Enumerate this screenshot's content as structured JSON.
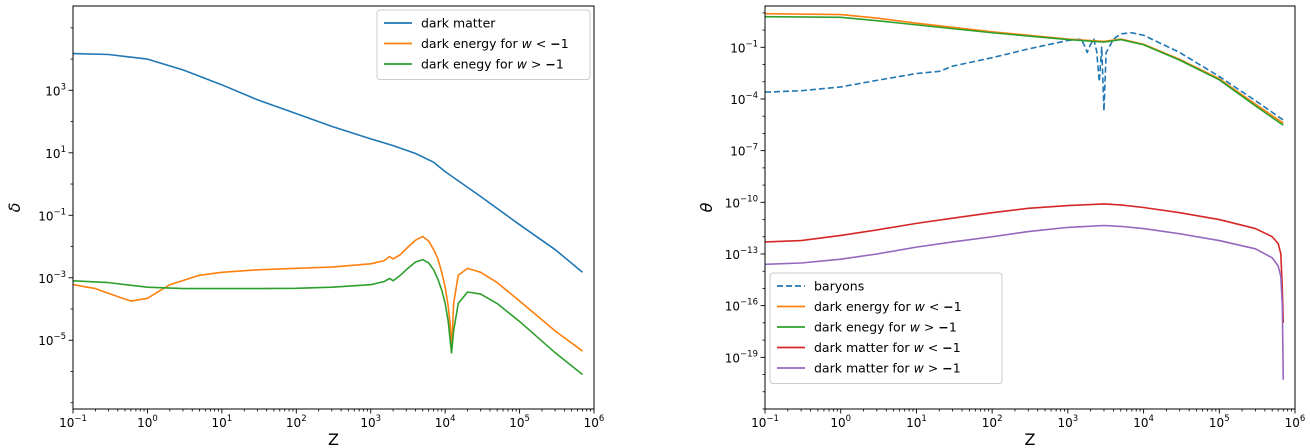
{
  "chart_data": [
    {
      "type": "line",
      "xlabel": "Z",
      "ylabel": "δ",
      "xscale": "log",
      "yscale": "log",
      "xlim": [
        0.1,
        1000000
      ],
      "ylim": [
        6.3e-08,
        500000
      ],
      "xticks": [
        {
          "v": 0.1,
          "base": "10",
          "exp": "−1"
        },
        {
          "v": 1,
          "base": "10",
          "exp": "0"
        },
        {
          "v": 10,
          "base": "10",
          "exp": "1"
        },
        {
          "v": 100,
          "base": "10",
          "exp": "2"
        },
        {
          "v": 1000,
          "base": "10",
          "exp": "3"
        },
        {
          "v": 10000,
          "base": "10",
          "exp": "4"
        },
        {
          "v": 100000,
          "base": "10",
          "exp": "5"
        },
        {
          "v": 1000000,
          "base": "10",
          "exp": "6"
        }
      ],
      "yticks": [
        {
          "v": 1e-05,
          "base": "10",
          "exp": "−5"
        },
        {
          "v": 0.001,
          "base": "10",
          "exp": "−3"
        },
        {
          "v": 0.1,
          "base": "10",
          "exp": "−1"
        },
        {
          "v": 10,
          "base": "10",
          "exp": "1"
        },
        {
          "v": 1000,
          "base": "10",
          "exp": "3"
        }
      ],
      "grid": false,
      "legend_position": "upper right",
      "series": [
        {
          "name": "dark matter",
          "name_pre": "dark matter",
          "name_rel": "",
          "name_val": "",
          "color": "#1f77b4",
          "dash": "solid",
          "x": [
            0.1,
            0.3,
            1,
            3,
            10,
            30,
            100,
            300,
            1000,
            2000,
            4000,
            7000,
            10000,
            30000,
            100000,
            300000,
            700000
          ],
          "y": [
            15000,
            14000,
            10000,
            4500,
            1500,
            500,
            180,
            70,
            28,
            17,
            9.5,
            5,
            2.5,
            0.4,
            0.05,
            0.008,
            0.0015
          ]
        },
        {
          "name": "dark energy for w < −1",
          "name_pre": "dark energy for ",
          "name_rel": "<",
          "name_val": "1",
          "color": "#ff7f0e",
          "dash": "solid",
          "x": [
            0.1,
            0.2,
            0.4,
            0.6,
            1,
            2,
            5,
            10,
            30,
            100,
            300,
            1000,
            1500,
            1800,
            2000,
            2500,
            3000,
            4000,
            5000,
            6000,
            7000,
            8000,
            9000,
            10000,
            11000,
            11800,
            12200,
            13000,
            15000,
            20000,
            30000,
            50000,
            100000,
            300000,
            700000
          ],
          "y": [
            0.0006,
            0.00045,
            0.00025,
            0.00018,
            0.00022,
            0.0006,
            0.0012,
            0.0015,
            0.0018,
            0.002,
            0.0022,
            0.0028,
            0.0035,
            0.0048,
            0.004,
            0.0055,
            0.0085,
            0.016,
            0.021,
            0.015,
            0.008,
            0.004,
            0.0015,
            0.0005,
            0.00012,
            2.5e-05,
            4e-06,
            0.00015,
            0.0012,
            0.002,
            0.0015,
            0.0007,
            0.00018,
            2e-05,
            4.5e-06
          ]
        },
        {
          "name": "dark enegy for w > −1",
          "name_pre": "dark enegy for ",
          "name_rel": ">",
          "name_val": "1",
          "color": "#2ca02c",
          "dash": "solid",
          "x": [
            0.1,
            0.3,
            1,
            3,
            10,
            30,
            100,
            300,
            1000,
            1500,
            1800,
            2000,
            2500,
            3000,
            4000,
            5000,
            6000,
            7000,
            8000,
            9000,
            10000,
            11000,
            11800,
            12200,
            13000,
            15000,
            20000,
            30000,
            50000,
            100000,
            300000,
            700000
          ],
          "y": [
            0.0008,
            0.0007,
            0.0005,
            0.00045,
            0.00045,
            0.00045,
            0.00046,
            0.0005,
            0.0006,
            0.00075,
            0.00095,
            0.0008,
            0.0012,
            0.0018,
            0.0032,
            0.0038,
            0.003,
            0.0018,
            0.0009,
            0.0004,
            0.00015,
            4e-05,
            8e-06,
            4e-06,
            2e-05,
            0.00015,
            0.00035,
            0.0003,
            0.00015,
            4e-05,
            4e-06,
            8e-07
          ]
        }
      ]
    },
    {
      "type": "line",
      "xlabel": "Z",
      "ylabel": "θ",
      "xscale": "log",
      "yscale": "log",
      "xlim": [
        0.1,
        1000000
      ],
      "ylim": [
        1e-22,
        25
      ],
      "xticks": [
        {
          "v": 0.1,
          "base": "10",
          "exp": "−1"
        },
        {
          "v": 1,
          "base": "10",
          "exp": "0"
        },
        {
          "v": 10,
          "base": "10",
          "exp": "1"
        },
        {
          "v": 100,
          "base": "10",
          "exp": "2"
        },
        {
          "v": 1000,
          "base": "10",
          "exp": "3"
        },
        {
          "v": 10000,
          "base": "10",
          "exp": "4"
        },
        {
          "v": 100000,
          "base": "10",
          "exp": "5"
        },
        {
          "v": 1000000,
          "base": "10",
          "exp": "6"
        }
      ],
      "yticks": [
        {
          "v": 1e-19,
          "base": "10",
          "exp": "−19"
        },
        {
          "v": 1e-16,
          "base": "10",
          "exp": "−16"
        },
        {
          "v": 1e-13,
          "base": "10",
          "exp": "−13"
        },
        {
          "v": 1e-10,
          "base": "10",
          "exp": "−10"
        },
        {
          "v": 1e-07,
          "base": "10",
          "exp": "−7"
        },
        {
          "v": 0.0001,
          "base": "10",
          "exp": "−4"
        },
        {
          "v": 0.1,
          "base": "10",
          "exp": "−1"
        }
      ],
      "grid": false,
      "legend_position": "lower left",
      "series": [
        {
          "name": "baryons",
          "name_pre": "baryons",
          "name_rel": "",
          "name_val": "",
          "color": "#1f77b4",
          "dash": "dashed",
          "x": [
            0.1,
            0.3,
            1,
            3,
            10,
            20,
            30,
            100,
            300,
            1000,
            1500,
            1700,
            1800,
            2000,
            2200,
            2400,
            2600,
            2800,
            3000,
            3200,
            3500,
            4000,
            5000,
            7000,
            10000,
            30000,
            100000,
            300000,
            700000
          ],
          "y": [
            0.00025,
            0.0003,
            0.0005,
            0.0012,
            0.003,
            0.004,
            0.008,
            0.025,
            0.08,
            0.25,
            0.3,
            0.1,
            0.05,
            0.15,
            0.3,
            0.06,
            0.001,
            0.1,
            2e-05,
            0.05,
            0.1,
            0.3,
            0.6,
            0.7,
            0.5,
            0.05,
            0.002,
            8e-05,
            6e-06
          ]
        },
        {
          "name": "dark energy for w < −1",
          "name_pre": "dark energy for ",
          "name_rel": "<",
          "name_val": "1",
          "color": "#ff7f0e",
          "dash": "solid",
          "x": [
            0.1,
            1,
            3,
            10,
            100,
            1000,
            3000,
            5000,
            10000,
            30000,
            100000,
            300000,
            700000
          ],
          "y": [
            9,
            8,
            5,
            2.5,
            0.8,
            0.3,
            0.22,
            0.3,
            0.15,
            0.02,
            0.0015,
            5e-05,
            4e-06
          ]
        },
        {
          "name": "dark enegy for w > −1",
          "name_pre": "dark enegy for ",
          "name_rel": ">",
          "name_val": "1",
          "color": "#2ca02c",
          "dash": "solid",
          "x": [
            0.1,
            1,
            3,
            10,
            100,
            1000,
            3000,
            5000,
            10000,
            30000,
            100000,
            300000,
            700000
          ],
          "y": [
            6,
            5.5,
            3.5,
            2,
            0.7,
            0.28,
            0.2,
            0.28,
            0.14,
            0.018,
            0.0013,
            4e-05,
            3e-06
          ]
        },
        {
          "name": "dark matter for w < −1",
          "name_pre": "dark matter for ",
          "name_rel": "<",
          "name_val": "1",
          "color": "#d62728",
          "dash": "solid",
          "x": [
            0.1,
            0.3,
            1,
            3,
            10,
            30,
            100,
            300,
            1000,
            3000,
            5000,
            10000,
            30000,
            100000,
            300000,
            500000,
            600000,
            650000,
            680000,
            700000
          ],
          "y": [
            5e-13,
            6e-13,
            1.2e-12,
            2.5e-12,
            6e-12,
            1.2e-11,
            2.5e-11,
            4.5e-11,
            6.5e-11,
            8e-11,
            7e-11,
            5e-11,
            2.5e-11,
            1e-11,
            3e-12,
            1e-12,
            4e-13,
            1e-13,
            1e-15,
            1e-17
          ]
        },
        {
          "name": "dark matter for w > −1",
          "name_pre": "dark matter for ",
          "name_rel": ">",
          "name_val": "1",
          "color": "#9467bd",
          "dash": "solid",
          "x": [
            0.1,
            0.3,
            1,
            3,
            10,
            30,
            100,
            300,
            1000,
            3000,
            5000,
            10000,
            30000,
            100000,
            300000,
            500000,
            600000,
            650000,
            680000,
            700000
          ],
          "y": [
            2.5e-14,
            3e-14,
            5e-14,
            1e-13,
            2.5e-13,
            5e-13,
            1e-12,
            2e-12,
            3.5e-12,
            4.5e-12,
            4e-12,
            3e-12,
            1.5e-12,
            6e-13,
            2e-13,
            6e-14,
            2e-14,
            5e-15,
            1e-16,
            5e-21
          ]
        }
      ]
    }
  ]
}
